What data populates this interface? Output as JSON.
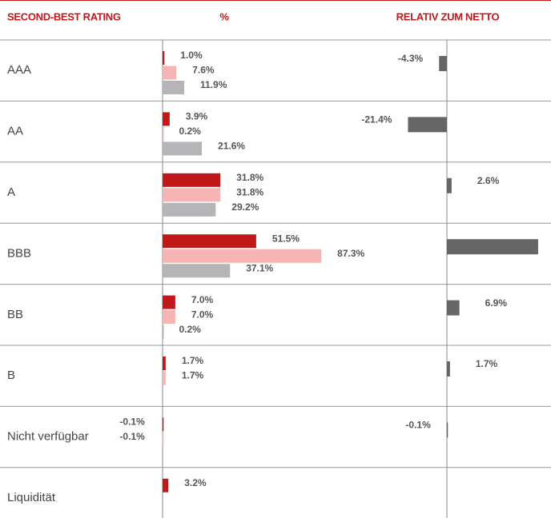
{
  "chart_data": {
    "type": "bar",
    "orientation": "horizontal",
    "headers": [
      "SECOND-BEST RATING",
      "%",
      "RELATIV ZUM NETTO"
    ],
    "categories": [
      "AAA",
      "AA",
      "A",
      "BBB",
      "BB",
      "B",
      "Nicht verfügbar",
      "Liquidität"
    ],
    "series": [
      {
        "color": "#c2181a",
        "values": [
          1.0,
          3.9,
          31.8,
          51.5,
          7.0,
          1.7,
          -0.1,
          3.2
        ],
        "value_labels": [
          "1.0%",
          "3.9%",
          "31.8%",
          "51.5%",
          "7.0%",
          "1.7%",
          "-0.1%",
          "3.2%"
        ]
      },
      {
        "color": "#f6b4b4",
        "values": [
          7.6,
          0.2,
          31.8,
          87.3,
          7.0,
          1.7,
          -0.1,
          null
        ],
        "value_labels": [
          "7.6%",
          "0.2%",
          "31.8%",
          "87.3%",
          "7.0%",
          "1.7%",
          "-0.1%",
          null
        ]
      },
      {
        "color": "#b5b5b7",
        "values": [
          11.9,
          21.6,
          29.2,
          37.1,
          0.2,
          null,
          null,
          null
        ],
        "value_labels": [
          "11.9%",
          "21.6%",
          "29.2%",
          "37.1%",
          "0.2%",
          null,
          null,
          null
        ]
      }
    ],
    "relative": {
      "color": "#666666",
      "values": [
        -4.3,
        -21.4,
        2.6,
        50.2,
        6.9,
        1.7,
        -0.1,
        null
      ],
      "value_labels": [
        "-4.3%",
        "-21.4%",
        "2.6%",
        null,
        "6.9%",
        "1.7%",
        "-0.1%",
        null
      ]
    },
    "xlim": [
      0,
      100
    ],
    "x2lim": [
      0,
      100
    ]
  }
}
